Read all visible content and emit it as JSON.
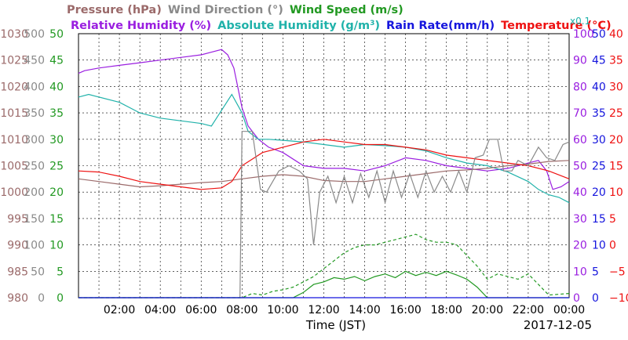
{
  "chart_data": {
    "type": "line",
    "date": "2017-12-05",
    "xlabel": "Time (JST)",
    "x_ticks": [
      "02:00",
      "04:00",
      "06:00",
      "08:00",
      "10:00",
      "12:00",
      "14:00",
      "16:00",
      "18:00",
      "20:00",
      "22:00",
      "00:00"
    ],
    "x_range_hours": [
      0,
      24
    ],
    "grid": true,
    "legend": {
      "line1": [
        {
          "text": "Pressure (hPa)",
          "color": "#9b6a6a"
        },
        {
          "text": "Wind Direction (°)",
          "color": "#8a8a8a"
        },
        {
          "text": "Wind Speed (m/s)",
          "color": "#229922"
        }
      ],
      "line2": [
        {
          "text": "Relative Humidity (%)",
          "color": "#9a1ee0"
        },
        {
          "text": "Absolute Humidity (g/m",
          "sup": "3",
          "tail": ")",
          "color": "#20b2aa"
        },
        {
          "text": "Rain Rate(mm/h)",
          "color": "#1515dd"
        },
        {
          "text": "Temperature (°C)",
          "color": "#ee1111"
        }
      ]
    },
    "axes_left": [
      {
        "name": "Pressure",
        "unit": "hPa",
        "color": "#9b6a6a",
        "range": [
          980,
          1030
        ],
        "ticks": [
          "1030",
          "1025",
          "1020",
          "1015",
          "1010",
          "1005",
          "1000",
          "995",
          "990",
          "985",
          "980"
        ]
      },
      {
        "name": "Wind Direction",
        "unit": "deg",
        "color": "#8a8a8a",
        "range": [
          0,
          500
        ],
        "ticks": [
          "500",
          "450",
          "400",
          "350",
          "300",
          "250",
          "200",
          "150",
          "100",
          "50",
          "0"
        ]
      },
      {
        "name": "Wind Speed",
        "unit": "m/s",
        "color": "#229922",
        "range": [
          0,
          50
        ],
        "ticks": [
          "50",
          "45",
          "40",
          "35",
          "30",
          "25",
          "20",
          "15",
          "10",
          "5",
          "0"
        ]
      }
    ],
    "axes_right": [
      {
        "name": "Relative Humidity",
        "unit": "%",
        "color": "#9a1ee0",
        "range": [
          0,
          100
        ],
        "ticks": [
          "100",
          "90",
          "80",
          "70",
          "60",
          "50",
          "40",
          "30",
          "20",
          "10",
          "0"
        ]
      },
      {
        "name": "Rain Rate",
        "unit": "mm/h",
        "color": "#1515dd",
        "range": [
          0,
          50
        ],
        "ticks": [
          "50",
          "45",
          "40",
          "35",
          "30",
          "25",
          "20",
          "15",
          "10",
          "5",
          "0"
        ]
      },
      {
        "name": "Temperature",
        "unit": "°C",
        "color": "#ee1111",
        "range": [
          -10,
          40
        ],
        "ticks": [
          "40",
          "35",
          "30",
          "25",
          "20",
          "15",
          "10",
          "5",
          "0",
          "−5",
          "−10"
        ]
      }
    ],
    "absolute_humidity_scale_note": "x0.1",
    "absolute_humidity_scale_color": "#20b2aa",
    "series": [
      {
        "name": "Relative Humidity",
        "axis": "rh",
        "color": "#9a1ee0",
        "points": [
          [
            0,
            85
          ],
          [
            0.3,
            86
          ],
          [
            1,
            87
          ],
          [
            2,
            88
          ],
          [
            3,
            89
          ],
          [
            4,
            90
          ],
          [
            5,
            91
          ],
          [
            6,
            92
          ],
          [
            6.5,
            93
          ],
          [
            7,
            94
          ],
          [
            7.3,
            92
          ],
          [
            7.6,
            87
          ],
          [
            8,
            72
          ],
          [
            8.3,
            65
          ],
          [
            8.8,
            60
          ],
          [
            9.3,
            57
          ],
          [
            10,
            55
          ],
          [
            11,
            50
          ],
          [
            12,
            49
          ],
          [
            13,
            49
          ],
          [
            14,
            48
          ],
          [
            15,
            50
          ],
          [
            16,
            53
          ],
          [
            17,
            52
          ],
          [
            18,
            50
          ],
          [
            19,
            49
          ],
          [
            20,
            48
          ],
          [
            21,
            49
          ],
          [
            22,
            51
          ],
          [
            22.5,
            52
          ],
          [
            22.9,
            48
          ],
          [
            23.2,
            41
          ],
          [
            23.6,
            42
          ],
          [
            24,
            44
          ]
        ]
      },
      {
        "name": "Absolute Humidity",
        "axis": "ah",
        "color": "#20b2aa",
        "points": [
          [
            0,
            380
          ],
          [
            0.5,
            385
          ],
          [
            1,
            380
          ],
          [
            2,
            370
          ],
          [
            3,
            350
          ],
          [
            4,
            340
          ],
          [
            5,
            335
          ],
          [
            6,
            330
          ],
          [
            6.5,
            325
          ],
          [
            7,
            355
          ],
          [
            7.5,
            385
          ],
          [
            8,
            350
          ],
          [
            8.3,
            315
          ],
          [
            8.8,
            300
          ],
          [
            9.3,
            300
          ],
          [
            10,
            298
          ],
          [
            11,
            295
          ],
          [
            12,
            290
          ],
          [
            13,
            285
          ],
          [
            14,
            290
          ],
          [
            15,
            288
          ],
          [
            16,
            285
          ],
          [
            17,
            278
          ],
          [
            18,
            265
          ],
          [
            19,
            255
          ],
          [
            20,
            250
          ],
          [
            21,
            238
          ],
          [
            22,
            220
          ],
          [
            22.5,
            205
          ],
          [
            23,
            195
          ],
          [
            23.5,
            190
          ],
          [
            24,
            180
          ]
        ]
      },
      {
        "name": "Pressure",
        "axis": "p",
        "color": "#9b6a6a",
        "points": [
          [
            0,
            1002.5
          ],
          [
            1,
            1002
          ],
          [
            2,
            1001.5
          ],
          [
            3,
            1001
          ],
          [
            4,
            1001.2
          ],
          [
            5,
            1001.5
          ],
          [
            6,
            1001.8
          ],
          [
            7,
            1002
          ],
          [
            8,
            1002.5
          ],
          [
            9,
            1003
          ],
          [
            10,
            1003.3
          ],
          [
            11,
            1003
          ],
          [
            12,
            1002.2
          ],
          [
            13,
            1002
          ],
          [
            14,
            1002
          ],
          [
            15,
            1002.5
          ],
          [
            16,
            1003
          ],
          [
            17,
            1003.5
          ],
          [
            18,
            1004
          ],
          [
            19,
            1004.2
          ],
          [
            20,
            1004.5
          ],
          [
            21,
            1005
          ],
          [
            22,
            1005.3
          ],
          [
            23,
            1005.8
          ],
          [
            24,
            1006
          ]
        ]
      },
      {
        "name": "Temperature",
        "axis": "t",
        "color": "#ee1111",
        "points": [
          [
            0,
            14
          ],
          [
            1,
            13.8
          ],
          [
            2,
            13
          ],
          [
            3,
            12
          ],
          [
            4,
            11.5
          ],
          [
            5,
            11
          ],
          [
            6,
            10.5
          ],
          [
            7,
            10.8
          ],
          [
            7.5,
            12
          ],
          [
            8,
            15
          ],
          [
            9,
            17.5
          ],
          [
            10,
            18.5
          ],
          [
            11,
            19.5
          ],
          [
            12,
            20
          ],
          [
            13,
            19.5
          ],
          [
            14,
            19
          ],
          [
            15,
            19
          ],
          [
            16,
            18.5
          ],
          [
            17,
            18
          ],
          [
            18,
            17
          ],
          [
            19,
            16.5
          ],
          [
            20,
            16
          ],
          [
            21,
            15.5
          ],
          [
            22,
            15
          ],
          [
            23,
            14
          ],
          [
            24,
            12.5
          ]
        ]
      },
      {
        "name": "Wind Direction",
        "axis": "wd",
        "color": "#8a8a8a",
        "points": [
          [
            0,
            0
          ],
          [
            7.9,
            0
          ],
          [
            8.0,
            315
          ],
          [
            8.5,
            315
          ],
          [
            8.9,
            205
          ],
          [
            9.2,
            200
          ],
          [
            9.8,
            240
          ],
          [
            10.3,
            250
          ],
          [
            10.8,
            240
          ],
          [
            11.2,
            225
          ],
          [
            11.5,
            100
          ],
          [
            11.8,
            200
          ],
          [
            12.2,
            230
          ],
          [
            12.6,
            180
          ],
          [
            13,
            230
          ],
          [
            13.4,
            180
          ],
          [
            13.8,
            235
          ],
          [
            14.2,
            190
          ],
          [
            14.6,
            240
          ],
          [
            15,
            180
          ],
          [
            15.4,
            240
          ],
          [
            15.8,
            190
          ],
          [
            16.2,
            235
          ],
          [
            16.6,
            190
          ],
          [
            17,
            240
          ],
          [
            17.4,
            200
          ],
          [
            17.8,
            230
          ],
          [
            18.2,
            200
          ],
          [
            18.6,
            240
          ],
          [
            19,
            200
          ],
          [
            19.4,
            265
          ],
          [
            19.8,
            270
          ],
          [
            20.1,
            300
          ],
          [
            20.5,
            300
          ],
          [
            20.8,
            240
          ],
          [
            21.2,
            240
          ],
          [
            21.5,
            260
          ],
          [
            22,
            250
          ],
          [
            22.5,
            285
          ],
          [
            22.9,
            265
          ],
          [
            23.3,
            260
          ],
          [
            23.7,
            290
          ],
          [
            24,
            295
          ]
        ]
      },
      {
        "name": "Wind Speed",
        "axis": "ws",
        "color": "#229922",
        "points": [
          [
            0,
            0
          ],
          [
            10.5,
            0
          ],
          [
            11,
            1
          ],
          [
            11.5,
            2.5
          ],
          [
            12,
            3
          ],
          [
            12.5,
            3.8
          ],
          [
            13,
            3.5
          ],
          [
            13.5,
            4
          ],
          [
            14,
            3.2
          ],
          [
            14.5,
            4
          ],
          [
            15,
            4.5
          ],
          [
            15.5,
            3.8
          ],
          [
            16,
            5
          ],
          [
            16.5,
            4.2
          ],
          [
            17,
            4.8
          ],
          [
            17.5,
            4.2
          ],
          [
            18,
            5
          ],
          [
            18.5,
            4.3
          ],
          [
            19,
            3.5
          ],
          [
            19.5,
            2
          ],
          [
            20,
            0
          ],
          [
            24,
            0
          ]
        ]
      },
      {
        "name": "Wind Gust",
        "axis": "ws",
        "color": "#229922",
        "dashed": true,
        "points": [
          [
            0,
            0
          ],
          [
            8,
            0
          ],
          [
            8.5,
            0.8
          ],
          [
            9,
            0.5
          ],
          [
            9.5,
            1.2
          ],
          [
            10,
            1.5
          ],
          [
            10.5,
            2
          ],
          [
            11,
            3
          ],
          [
            11.5,
            4
          ],
          [
            12,
            5.5
          ],
          [
            12.5,
            7
          ],
          [
            13,
            8.5
          ],
          [
            13.5,
            9.5
          ],
          [
            14,
            10
          ],
          [
            14.5,
            10
          ],
          [
            15,
            10.5
          ],
          [
            15.5,
            11
          ],
          [
            16,
            11.5
          ],
          [
            16.5,
            12
          ],
          [
            17,
            11
          ],
          [
            17.5,
            10.5
          ],
          [
            18,
            10.5
          ],
          [
            18.5,
            10
          ],
          [
            19,
            8
          ],
          [
            19.5,
            6
          ],
          [
            20,
            3.5
          ],
          [
            20.5,
            4.5
          ],
          [
            21,
            4
          ],
          [
            21.5,
            3.5
          ],
          [
            22,
            4.5
          ],
          [
            22.5,
            2.5
          ],
          [
            23,
            0.5
          ],
          [
            24,
            0.8
          ]
        ]
      },
      {
        "name": "Rain Rate",
        "axis": "rr",
        "color": "#1515dd",
        "points": [
          [
            0,
            0
          ],
          [
            24,
            0
          ]
        ]
      }
    ]
  }
}
